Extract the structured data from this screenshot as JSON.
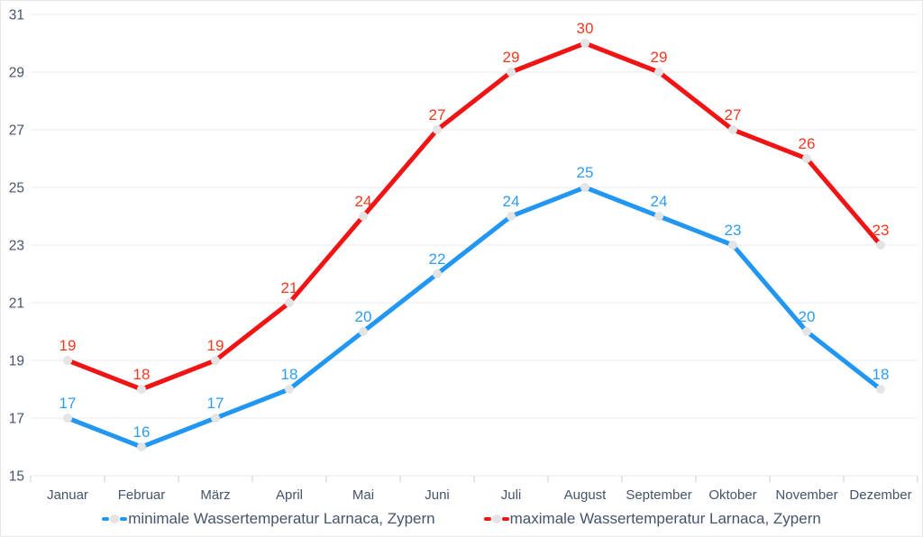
{
  "chart_data": {
    "type": "line",
    "categories": [
      "Januar",
      "Februar",
      "März",
      "April",
      "Mai",
      "Juni",
      "Juli",
      "August",
      "September",
      "Oktober",
      "November",
      "Dezember"
    ],
    "series": [
      {
        "name": "minimale Wassertemperatur Larnaca, Zypern",
        "line_color": "#2196f3",
        "label_color": "#2e9cf3",
        "values": [
          17,
          16,
          17,
          18,
          20,
          22,
          24,
          25,
          24,
          23,
          20,
          18
        ]
      },
      {
        "name": "maximale Wassertemperatur Larnaca, Zypern",
        "line_color": "#f01414",
        "label_color": "#f4371f",
        "values": [
          19,
          18,
          19,
          21,
          24,
          27,
          29,
          30,
          29,
          27,
          26,
          23
        ]
      }
    ],
    "yticks": [
      15,
      17,
      19,
      21,
      23,
      25,
      27,
      29,
      31
    ],
    "ylim": [
      15,
      31
    ],
    "grid": true,
    "legend_position": "bottom",
    "colors": {
      "grid_line": "#ededed",
      "axis_tick": "#d9d9d9",
      "axis_text": "#44546a",
      "point_marker": "#e4e4e4",
      "background": "#ffffff"
    }
  }
}
